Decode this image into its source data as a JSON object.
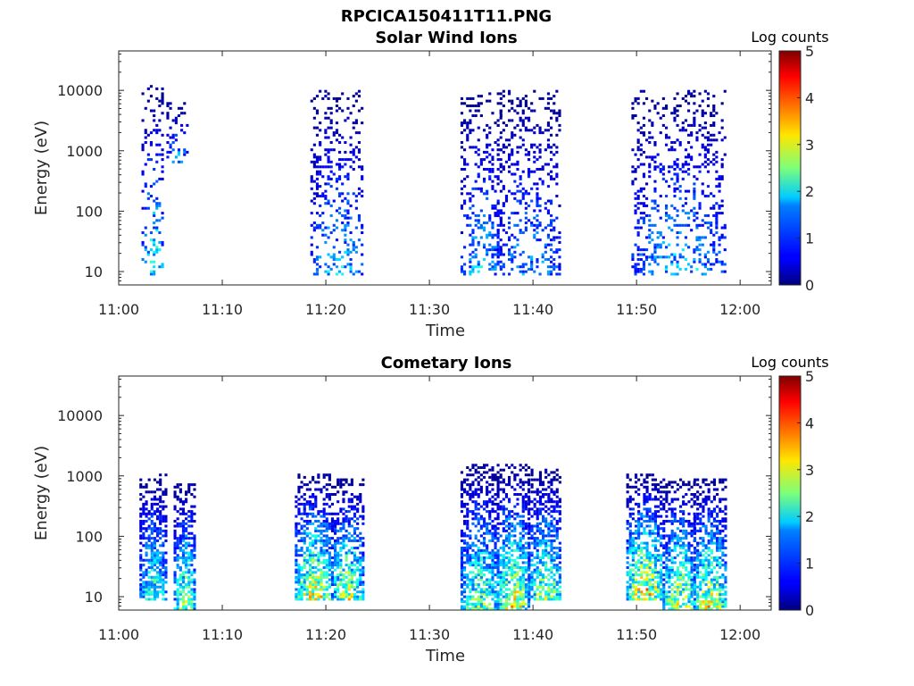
{
  "figure": {
    "suptitle": "RPCICA150411T11.PNG"
  },
  "colormap": "jet",
  "chart_data": [
    {
      "type": "heatmap",
      "title": "Solar Wind Ions",
      "xlabel": "Time",
      "ylabel": "Energy (eV)",
      "colorbar_label": "Log counts",
      "y_scale": "log",
      "x_ticks": [
        "11:00",
        "11:10",
        "11:20",
        "11:30",
        "11:40",
        "11:50",
        "12:00"
      ],
      "y_ticks": [
        "10",
        "100",
        "1000",
        "10000"
      ],
      "colorbar_ticks": [
        "0",
        "1",
        "2",
        "3",
        "4",
        "5"
      ],
      "xlim_minutes": [
        0,
        63
      ],
      "ylim_eV": [
        6,
        45000
      ],
      "clim": [
        0,
        5
      ],
      "bursts": [
        {
          "t_start": 2.2,
          "t_end": 4.3,
          "e_low": 8,
          "e_high": 12000,
          "peak_log_counts": 2.2
        },
        {
          "t_start": 4.6,
          "t_end": 6.5,
          "e_low": 600,
          "e_high": 6000,
          "peak_log_counts": 1.8
        },
        {
          "t_start": 18.5,
          "t_end": 23.6,
          "e_low": 8,
          "e_high": 10000,
          "peak_log_counts": 1.8
        },
        {
          "t_start": 33.0,
          "t_end": 36.8,
          "e_low": 8,
          "e_high": 9000,
          "peak_log_counts": 1.8
        },
        {
          "t_start": 36.5,
          "t_end": 42.5,
          "e_low": 8,
          "e_high": 10000,
          "peak_log_counts": 1.6
        },
        {
          "t_start": 49.5,
          "t_end": 58.5,
          "e_low": 8,
          "e_high": 10000,
          "peak_log_counts": 1.8
        }
      ]
    },
    {
      "type": "heatmap",
      "title": "Cometary Ions",
      "xlabel": "Time",
      "ylabel": "Energy (eV)",
      "colorbar_label": "Log counts",
      "y_scale": "log",
      "x_ticks": [
        "11:00",
        "11:10",
        "11:20",
        "11:30",
        "11:40",
        "11:50",
        "12:00"
      ],
      "y_ticks": [
        "10",
        "100",
        "1000",
        "10000"
      ],
      "colorbar_ticks": [
        "0",
        "1",
        "2",
        "3",
        "4",
        "5"
      ],
      "xlim_minutes": [
        0,
        63
      ],
      "ylim_eV": [
        6,
        45000
      ],
      "clim": [
        0,
        5
      ],
      "bursts": [
        {
          "t_start": 2.0,
          "t_end": 4.5,
          "e_low": 8,
          "e_high": 1000,
          "peak_log_counts": 2.5
        },
        {
          "t_start": 5.3,
          "t_end": 7.3,
          "e_low": 6,
          "e_high": 700,
          "peak_log_counts": 3.0
        },
        {
          "t_start": 17.0,
          "t_end": 20.5,
          "e_low": 8,
          "e_high": 1000,
          "peak_log_counts": 3.6
        },
        {
          "t_start": 20.5,
          "t_end": 23.5,
          "e_low": 8,
          "e_high": 900,
          "peak_log_counts": 3.2
        },
        {
          "t_start": 33.0,
          "t_end": 36.5,
          "e_low": 6,
          "e_high": 1500,
          "peak_log_counts": 2.8
        },
        {
          "t_start": 36.5,
          "t_end": 39.5,
          "e_low": 6,
          "e_high": 1500,
          "peak_log_counts": 3.4
        },
        {
          "t_start": 39.5,
          "t_end": 42.7,
          "e_low": 8,
          "e_high": 1200,
          "peak_log_counts": 3.0
        },
        {
          "t_start": 49.0,
          "t_end": 52.5,
          "e_low": 8,
          "e_high": 1000,
          "peak_log_counts": 3.8
        },
        {
          "t_start": 52.5,
          "t_end": 55.5,
          "e_low": 6,
          "e_high": 900,
          "peak_log_counts": 3.3
        },
        {
          "t_start": 55.5,
          "t_end": 58.5,
          "e_low": 6,
          "e_high": 900,
          "peak_log_counts": 3.4
        }
      ]
    }
  ]
}
